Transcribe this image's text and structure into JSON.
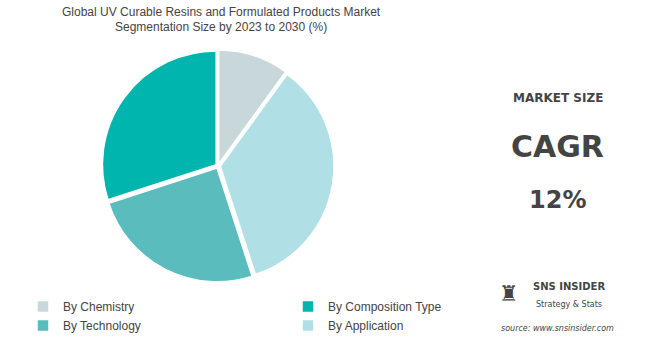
{
  "chart_data": {
    "type": "pie",
    "title": "Global UV Curable Resins and Formulated Products Market",
    "subtitle": "Segmentation Size by 2023 to 2030 (%)",
    "categories": [
      "By Chemistry",
      "By Composition Type",
      "By Technology",
      "By Application"
    ],
    "values": [
      10,
      30,
      25,
      35
    ],
    "colors": [
      "#c8d8da",
      "#00b5ad",
      "#5bbcbe",
      "#b0e0e6"
    ],
    "legend": "bottom",
    "data_labels": false,
    "annotations": [
      "MARKET SIZE",
      "CAGR",
      "12%",
      "SNS INSIDER",
      "Strategy & Stats",
      "♜",
      "source: www.snsinsider.com"
    ]
  }
}
